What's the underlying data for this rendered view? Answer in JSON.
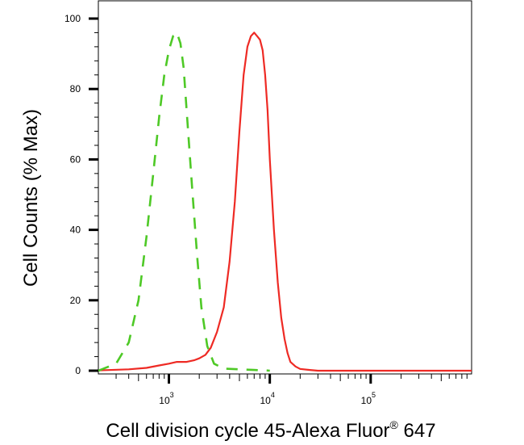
{
  "chart_data": {
    "type": "line",
    "xlabel": "Cell division cycle 45-Alexa Fluor",
    "xlabel_reg": "®",
    "xlabel_suffix": " 647",
    "ylabel": "Cell Counts (% Max)",
    "x_scale": "log",
    "xlim": [
      200,
      1000000
    ],
    "ylim": [
      0,
      100
    ],
    "y_ticks": [
      "0",
      "20",
      "40",
      "60",
      "80",
      "100"
    ],
    "x_ticks": [
      {
        "base": "10",
        "exp": "3"
      },
      {
        "base": "10",
        "exp": "4"
      },
      {
        "base": "10",
        "exp": "5"
      }
    ],
    "series": [
      {
        "color": "#ee2a24",
        "style": "solid",
        "points": [
          [
            200,
            0.1
          ],
          [
            400,
            0.4
          ],
          [
            600,
            0.8
          ],
          [
            800,
            1.5
          ],
          [
            1000,
            2
          ],
          [
            1200,
            2.5
          ],
          [
            1500,
            2.5
          ],
          [
            1800,
            3
          ],
          [
            2000,
            3.5
          ],
          [
            2300,
            4.5
          ],
          [
            2600,
            6.5
          ],
          [
            3000,
            11
          ],
          [
            3500,
            18
          ],
          [
            4000,
            31
          ],
          [
            4500,
            48
          ],
          [
            5000,
            68
          ],
          [
            5500,
            84
          ],
          [
            6000,
            92
          ],
          [
            6500,
            95
          ],
          [
            7000,
            96
          ],
          [
            7500,
            95
          ],
          [
            8000,
            94
          ],
          [
            8500,
            91
          ],
          [
            9000,
            84
          ],
          [
            9500,
            74
          ],
          [
            10000,
            60
          ],
          [
            11000,
            40
          ],
          [
            12000,
            25
          ],
          [
            13000,
            15
          ],
          [
            14000,
            9
          ],
          [
            15000,
            5
          ],
          [
            16000,
            2.5
          ],
          [
            18000,
            1.2
          ],
          [
            20000,
            0.5
          ],
          [
            25000,
            0.2
          ],
          [
            30000,
            0
          ],
          [
            1000000,
            0
          ]
        ]
      },
      {
        "color": "#4ec926",
        "style": "dashed",
        "points": [
          [
            200,
            0
          ],
          [
            300,
            2
          ],
          [
            400,
            8
          ],
          [
            500,
            20
          ],
          [
            600,
            38
          ],
          [
            700,
            56
          ],
          [
            800,
            72
          ],
          [
            900,
            84
          ],
          [
            1000,
            91
          ],
          [
            1100,
            95
          ],
          [
            1200,
            96
          ],
          [
            1300,
            93
          ],
          [
            1400,
            86
          ],
          [
            1500,
            74
          ],
          [
            1700,
            52
          ],
          [
            1900,
            33
          ],
          [
            2100,
            18
          ],
          [
            2400,
            7
          ],
          [
            2800,
            2
          ],
          [
            3500,
            0.6
          ],
          [
            5000,
            0.4
          ],
          [
            7000,
            0.2
          ],
          [
            9000,
            0.1
          ],
          [
            10000,
            0
          ]
        ]
      }
    ]
  }
}
